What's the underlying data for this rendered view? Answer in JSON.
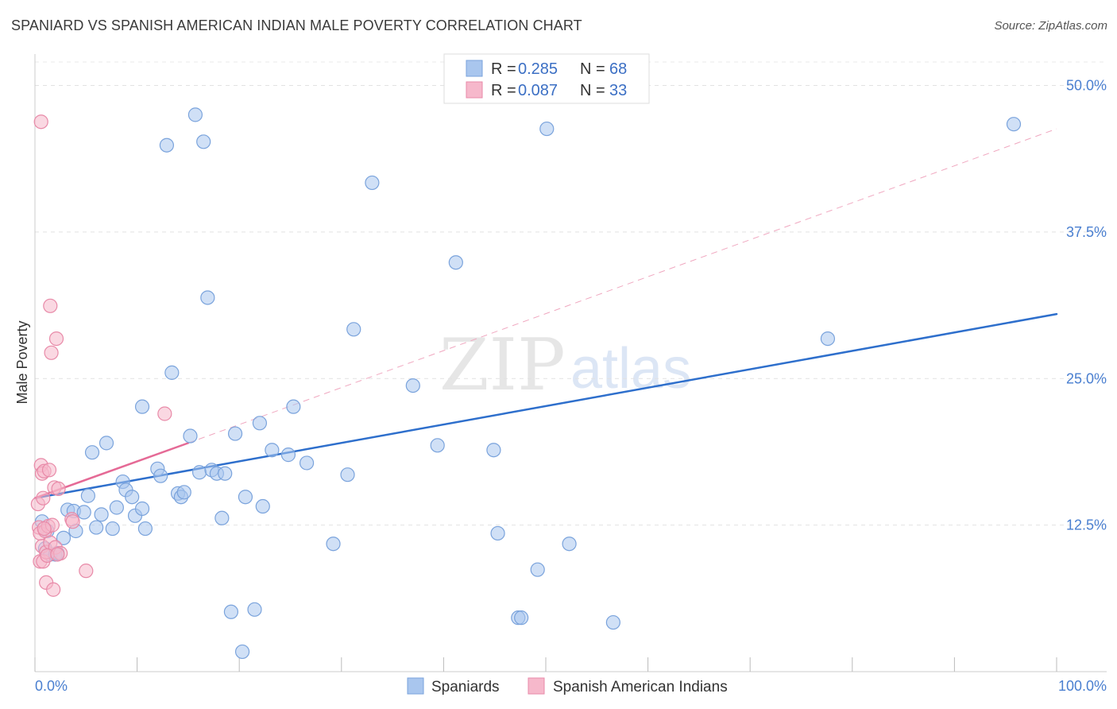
{
  "title": "SPANIARD VS SPANISH AMERICAN INDIAN MALE POVERTY CORRELATION CHART",
  "source": "Source: ZipAtlas.com",
  "colors": {
    "blue_fill": "#a9c6ee",
    "blue_stroke": "#7aa3dc",
    "blue_line": "#2e6fcc",
    "pink_fill": "#f6b8cb",
    "pink_stroke": "#e88aa8",
    "pink_line": "#e56a96",
    "tick_blue": "#4a7fd0"
  },
  "chart_data": {
    "type": "scatter",
    "title": "SPANIARD VS SPANISH AMERICAN INDIAN MALE POVERTY CORRELATION CHART",
    "xlabel": "",
    "ylabel": "Male Poverty",
    "xlim": [
      0,
      100
    ],
    "ylim": [
      0,
      52
    ],
    "x_tick_labels": [
      {
        "value": 0,
        "label": "0.0%"
      },
      {
        "value": 100,
        "label": "100.0%"
      }
    ],
    "y_tick_labels": [
      {
        "value": 12.5,
        "label": "12.5%"
      },
      {
        "value": 25,
        "label": "25.0%"
      },
      {
        "value": 37.5,
        "label": "37.5%"
      },
      {
        "value": 50,
        "label": "50.0%"
      }
    ],
    "legend": {
      "position": "top-center",
      "entries": [
        {
          "r_label": "R =",
          "r_value": "0.285",
          "n_label": "N =",
          "n_value": "68"
        },
        {
          "r_label": "R =",
          "r_value": "0.087",
          "n_label": "N =",
          "n_value": "33"
        }
      ]
    },
    "bottom_legend": [
      "Spaniards",
      "Spanish American Indians"
    ],
    "watermark": {
      "zip": "ZIP",
      "atlas": "atlas"
    },
    "series": [
      {
        "name": "Spaniards",
        "color": "blue",
        "trend": {
          "x0": 0,
          "y0": 14.8,
          "x1": 100,
          "y1": 30.5,
          "style": "solid"
        },
        "points": [
          [
            0.7,
            12.8
          ],
          [
            1.0,
            10.5
          ],
          [
            1.2,
            12.0
          ],
          [
            1.5,
            10.0
          ],
          [
            2.0,
            10.0
          ],
          [
            2.2,
            10.1
          ],
          [
            2.8,
            11.4
          ],
          [
            3.2,
            13.8
          ],
          [
            3.8,
            13.7
          ],
          [
            4.0,
            12.0
          ],
          [
            4.8,
            13.6
          ],
          [
            5.2,
            15.0
          ],
          [
            5.6,
            18.7
          ],
          [
            6.0,
            12.3
          ],
          [
            6.5,
            13.4
          ],
          [
            7.0,
            19.5
          ],
          [
            7.6,
            12.2
          ],
          [
            8.0,
            14.0
          ],
          [
            8.6,
            16.2
          ],
          [
            8.9,
            15.5
          ],
          [
            9.5,
            14.9
          ],
          [
            9.8,
            13.3
          ],
          [
            10.5,
            13.9
          ],
          [
            10.8,
            12.2
          ],
          [
            10.5,
            22.6
          ],
          [
            12.0,
            17.3
          ],
          [
            12.3,
            16.7
          ],
          [
            12.9,
            44.9
          ],
          [
            13.4,
            25.5
          ],
          [
            14.0,
            15.2
          ],
          [
            14.3,
            14.9
          ],
          [
            14.6,
            15.3
          ],
          [
            15.2,
            20.1
          ],
          [
            15.7,
            47.5
          ],
          [
            16.1,
            17.0
          ],
          [
            16.5,
            45.2
          ],
          [
            16.9,
            31.9
          ],
          [
            17.3,
            17.2
          ],
          [
            17.8,
            16.9
          ],
          [
            18.3,
            13.1
          ],
          [
            18.6,
            16.9
          ],
          [
            19.2,
            5.1
          ],
          [
            19.6,
            20.3
          ],
          [
            20.3,
            1.7
          ],
          [
            20.6,
            14.9
          ],
          [
            21.5,
            5.3
          ],
          [
            22.3,
            14.1
          ],
          [
            22.0,
            21.2
          ],
          [
            23.2,
            18.9
          ],
          [
            24.8,
            18.5
          ],
          [
            25.3,
            22.6
          ],
          [
            26.6,
            17.8
          ],
          [
            29.2,
            10.9
          ],
          [
            30.6,
            16.8
          ],
          [
            31.2,
            29.2
          ],
          [
            33.0,
            41.7
          ],
          [
            37.0,
            24.4
          ],
          [
            39.4,
            19.3
          ],
          [
            41.2,
            34.9
          ],
          [
            44.9,
            18.9
          ],
          [
            45.3,
            11.8
          ],
          [
            47.3,
            4.6
          ],
          [
            47.6,
            4.6
          ],
          [
            49.2,
            8.7
          ],
          [
            50.1,
            46.3
          ],
          [
            52.3,
            10.9
          ],
          [
            56.6,
            4.2
          ],
          [
            77.6,
            28.4
          ],
          [
            95.8,
            46.7
          ]
        ]
      },
      {
        "name": "Spanish American Indians",
        "color": "pink",
        "trend": {
          "x0": 0,
          "y0": 14.8,
          "x1": 15,
          "y1": 19.5,
          "dash_to_x": 100,
          "dash_to_y": 46.3,
          "style": "solid-then-dashed"
        },
        "points": [
          [
            0.3,
            14.3
          ],
          [
            0.4,
            12.3
          ],
          [
            0.5,
            11.8
          ],
          [
            0.5,
            9.4
          ],
          [
            0.6,
            17.6
          ],
          [
            0.7,
            16.9
          ],
          [
            0.7,
            10.7
          ],
          [
            0.8,
            14.8
          ],
          [
            0.8,
            9.4
          ],
          [
            0.9,
            17.1
          ],
          [
            1.0,
            12.0
          ],
          [
            1.1,
            10.2
          ],
          [
            1.1,
            7.6
          ],
          [
            1.3,
            12.4
          ],
          [
            1.4,
            17.2
          ],
          [
            1.5,
            11.0
          ],
          [
            1.5,
            31.2
          ],
          [
            1.6,
            27.2
          ],
          [
            1.7,
            12.5
          ],
          [
            1.8,
            7.0
          ],
          [
            1.9,
            15.7
          ],
          [
            2.0,
            10.6
          ],
          [
            2.1,
            28.4
          ],
          [
            2.3,
            15.6
          ],
          [
            2.5,
            10.1
          ],
          [
            3.6,
            13.0
          ],
          [
            3.7,
            12.8
          ],
          [
            5.0,
            8.6
          ],
          [
            12.7,
            22.0
          ],
          [
            0.6,
            46.9
          ],
          [
            1.2,
            9.9
          ],
          [
            0.9,
            12.2
          ],
          [
            2.2,
            10.0
          ]
        ]
      }
    ]
  }
}
